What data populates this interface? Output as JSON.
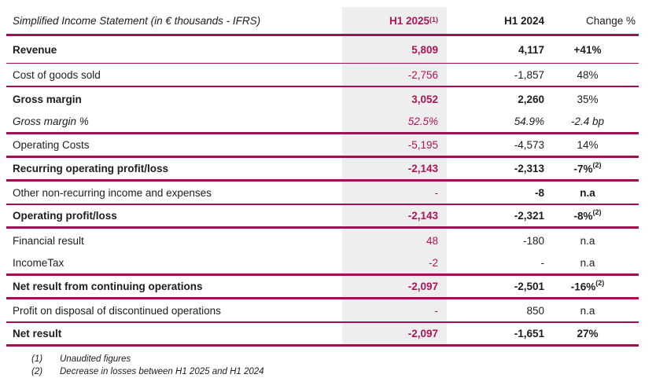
{
  "title": "Simplified Income Statement (in € thousands - IFRS)",
  "header": {
    "col1": "H1 2025",
    "col1_sup": "(1)",
    "col2": "H1 2024",
    "col3": "Change %"
  },
  "rows": [
    {
      "label": "Revenue",
      "v1": "5,809",
      "v2": "4,117",
      "v3": "+41%",
      "sup3": "",
      "lb": true,
      "b1": true,
      "b2": true,
      "b3": true,
      "it": false,
      "rule": "1"
    },
    {
      "label": "Cost of goods sold",
      "v1": "-2,756",
      "v2": "-1,857",
      "v3": "48%",
      "sup3": "",
      "lb": false,
      "b1": false,
      "b2": false,
      "b3": false,
      "it": false,
      "rule": "2"
    },
    {
      "label": "Gross margin",
      "v1": "3,052",
      "v2": "2,260",
      "v3": "35%",
      "sup3": "",
      "lb": true,
      "b1": true,
      "b2": true,
      "b3": false,
      "it": false,
      "rule": "0"
    },
    {
      "label": "Gross margin %",
      "v1": "52.5%",
      "v2": "54.9%",
      "v3": "-2.4 bp",
      "sup3": "",
      "lb": false,
      "b1": false,
      "b2": false,
      "b3": false,
      "it": true,
      "rule": "3"
    },
    {
      "label": "Operating Costs",
      "v1": "-5,195",
      "v2": "-4,573",
      "v3": "14%",
      "sup3": "",
      "lb": false,
      "b1": false,
      "b2": false,
      "b3": false,
      "it": false,
      "rule": "3"
    },
    {
      "label": "Recurring operating profit/loss",
      "v1": "-2,143",
      "v2": "-2,313",
      "v3": "-7%",
      "sup3": "(2)",
      "lb": true,
      "b1": true,
      "b2": true,
      "b3": true,
      "it": false,
      "rule": "3"
    },
    {
      "label": "Other non-recurring income and expenses",
      "v1": "-",
      "v2": "-8",
      "v3": "n.a",
      "sup3": "",
      "lb": false,
      "b1": false,
      "b2": true,
      "b3": true,
      "it": false,
      "rule": "2"
    },
    {
      "label": "Operating profit/loss",
      "v1": "-2,143",
      "v2": "-2,321",
      "v3": "-8%",
      "sup3": "(2)",
      "lb": true,
      "b1": true,
      "b2": true,
      "b3": true,
      "it": false,
      "rule": "3"
    },
    {
      "label": "Financial result",
      "v1": "48",
      "v2": "-180",
      "v3": "n.a",
      "sup3": "",
      "lb": false,
      "b1": false,
      "b2": false,
      "b3": false,
      "it": false,
      "rule": "0"
    },
    {
      "label": "IncomeTax",
      "v1": "-2",
      "v2": "-",
      "v3": "n.a",
      "sup3": "",
      "lb": false,
      "b1": false,
      "b2": false,
      "b3": false,
      "it": false,
      "rule": "3"
    },
    {
      "label": "Net result from continuing operations",
      "v1": "-2,097",
      "v2": "-2,501",
      "v3": "-16%",
      "sup3": "(2)",
      "lb": true,
      "b1": true,
      "b2": true,
      "b3": true,
      "it": false,
      "rule": "3"
    },
    {
      "label": "Profit on disposal of discontinued operations",
      "v1": "-",
      "v2": "850",
      "v3": "n.a",
      "sup3": "",
      "lb": false,
      "b1": false,
      "b2": false,
      "b3": false,
      "it": false,
      "rule": "2"
    },
    {
      "label": "Net result",
      "v1": "-2,097",
      "v2": "-1,651",
      "v3": "27%",
      "sup3": "",
      "lb": true,
      "b1": true,
      "b2": true,
      "b3": true,
      "it": false,
      "rule": "3"
    }
  ],
  "footnotes": [
    {
      "num": "(1)",
      "text": "Unaudited figures"
    },
    {
      "num": "(2)",
      "text": "Decrease in losses between H1 2025 and H1 2024"
    }
  ],
  "colors": {
    "accent_rule": "#A01052",
    "accent_text": "#AE1458",
    "column_highlight_bg": "#EFEEEF",
    "text": "#1D1D1B"
  }
}
